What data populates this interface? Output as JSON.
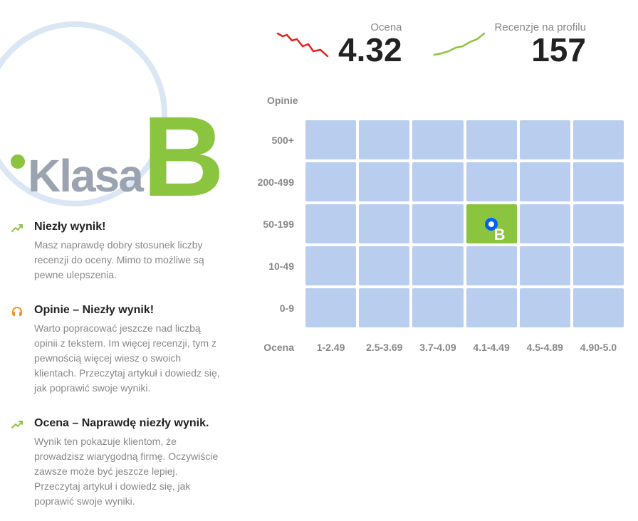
{
  "grade": {
    "label": "Klasa",
    "letter": "B",
    "circle_color": "#dbe6f5",
    "accent_color": "#8bc53f",
    "label_color": "#9aa3af"
  },
  "info_items": [
    {
      "icon": "trend-up",
      "icon_color": "#8bc53f",
      "title": "Niezły wynik!",
      "desc": "Masz naprawdę dobry stosunek liczby recenzji do oceny. Mimo to możliwe są pewne ulepszenia."
    },
    {
      "icon": "headphones",
      "icon_color": "#f7941d",
      "title": "Opinie – Niezły wynik!",
      "desc": "Warto popracować jeszcze nad liczbą opinii z tekstem. Im więcej recenzji, tym z pewnością więcej wiesz o swoich klientach. Przeczytaj artykuł i dowiedz się, jak poprawić swoje wyniki."
    },
    {
      "icon": "trend-up",
      "icon_color": "#8bc53f",
      "title": "Ocena – Naprawdę niezły wynik.",
      "desc": "Wynik ten pokazuje klientom, że prowadzisz wiarygodną firmę. Oczywiście zawsze może być jeszcze lepiej. Przeczytaj artykuł i dowiedz się, jak poprawić swoje wyniki."
    }
  ],
  "metrics": {
    "rating": {
      "label": "Ocena",
      "value": "4.32",
      "trend": "down",
      "trend_color": "#e82020"
    },
    "reviews": {
      "label": "Recenzje na profilu",
      "value": "157",
      "trend": "up",
      "trend_color": "#8bc53f"
    }
  },
  "heatmap": {
    "y_title": "Opinie",
    "x_title": "Ocena",
    "y_labels": [
      "500+",
      "200-499",
      "50-199",
      "10-49",
      "0-9"
    ],
    "x_labels": [
      "1-2.49",
      "2.5-3.69",
      "3.7-4.09",
      "4.1-4.49",
      "4.5-4.89",
      "4.90-5.0"
    ],
    "cell_color": "#b9cdee",
    "active_color": "#8bc53f",
    "marker_color": "#0060ff",
    "active": {
      "row": 2,
      "col": 3,
      "badge": "B"
    }
  }
}
